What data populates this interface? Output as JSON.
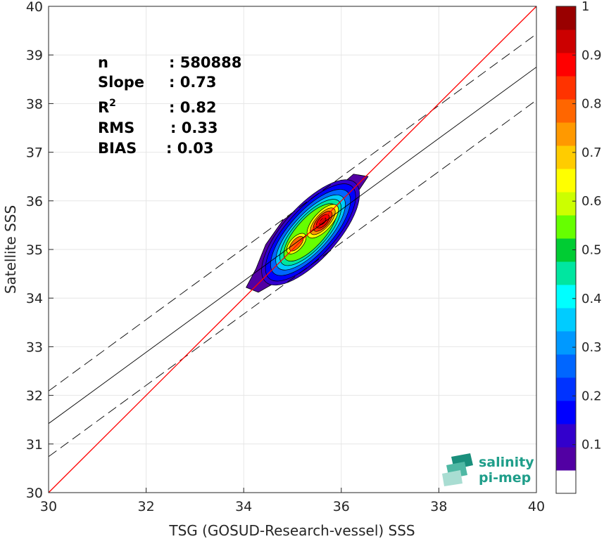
{
  "chart_data": {
    "type": "contour",
    "xlabel": "TSG (GOSUD-Research-vessel) SSS",
    "ylabel": "Satellite SSS",
    "xlim": [
      30,
      40
    ],
    "ylim": [
      30,
      40
    ],
    "x_ticks": [
      "30",
      "32",
      "34",
      "36",
      "38",
      "40"
    ],
    "y_ticks": [
      "30",
      "31",
      "32",
      "33",
      "34",
      "35",
      "36",
      "37",
      "38",
      "39",
      "40"
    ],
    "grid": true,
    "stats": [
      {
        "label": "n",
        "value": ": 580888"
      },
      {
        "label": "Slope",
        "value": ": 0.73"
      },
      {
        "label": "R",
        "sup": "2",
        "value": ": 0.82"
      },
      {
        "label": "RMS",
        "value": ": 0.33"
      },
      {
        "label": "BIAS",
        "value": ": 0.03"
      }
    ],
    "identity_line": {
      "color": "#ff0000",
      "from": [
        30,
        30
      ],
      "to": [
        40,
        40
      ]
    },
    "fit_line": {
      "x": [
        30,
        40
      ],
      "y": [
        31.42,
        38.75
      ]
    },
    "fit_bounds": [
      {
        "x": [
          30,
          40
        ],
        "y": [
          32.09,
          39.43
        ]
      },
      {
        "x": [
          30,
          40
        ],
        "y": [
          30.74,
          38.07
        ]
      }
    ],
    "density_peak": {
      "x": 35.62,
      "y": 35.58
    },
    "secondary_peak": {
      "x": 35.08,
      "y": 35.12
    },
    "colorbar": {
      "range": [
        0,
        1
      ],
      "tick_labels": [
        "0.1",
        "0.2",
        "0.3",
        "0.4",
        "0.5",
        "0.6",
        "0.7",
        "0.8",
        "0.9",
        "1"
      ],
      "colors": [
        "#ffffff",
        "#5200a3",
        "#3300cc",
        "#0000ff",
        "#0033ff",
        "#0066ff",
        "#0099ff",
        "#00ccff",
        "#00ffff",
        "#00e6a0",
        "#00cc33",
        "#66ff00",
        "#ccff00",
        "#ffff00",
        "#ffcc00",
        "#ff9900",
        "#ff6600",
        "#ff3300",
        "#ff0000",
        "#cc0000",
        "#990000"
      ]
    }
  },
  "logo": {
    "line1": "salinity",
    "line2": "pi-mep",
    "color": "#1f9e8a"
  }
}
